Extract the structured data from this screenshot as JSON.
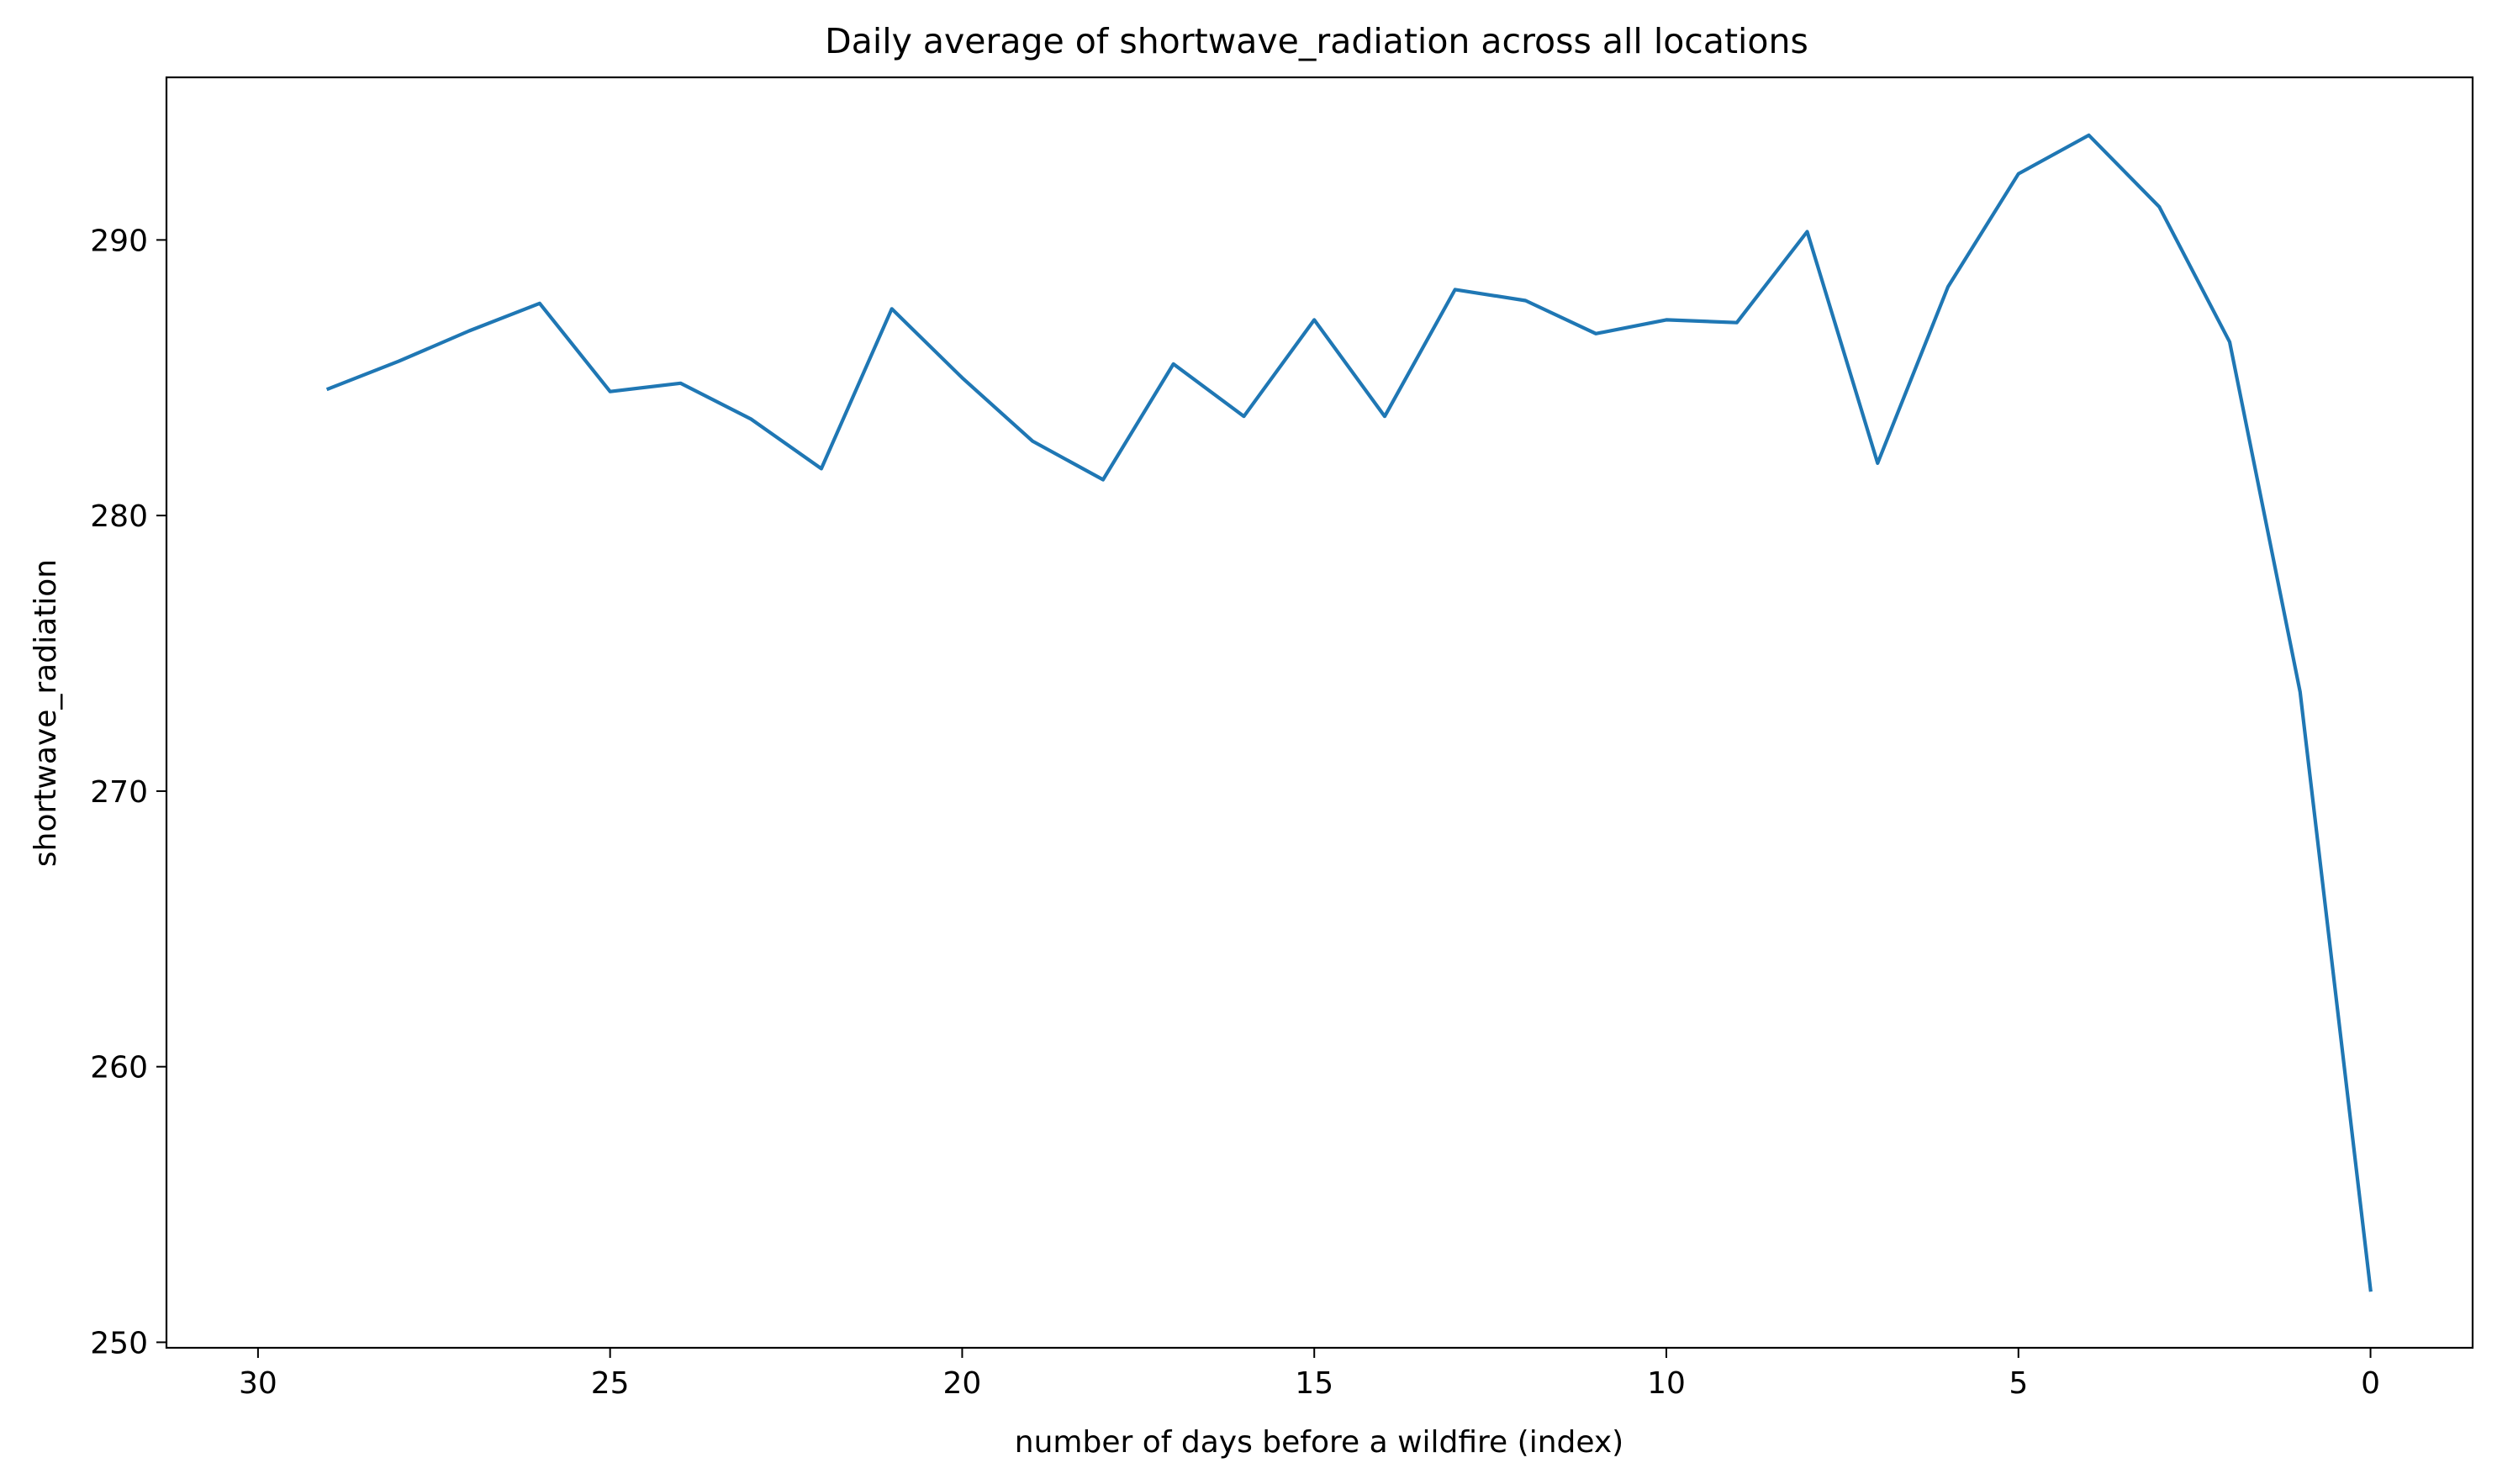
{
  "chart_data": {
    "type": "line",
    "title": "Daily average of shortwave_radiation across all locations",
    "xlabel": "number of days before a wildfire (index)",
    "ylabel": "shortwave_radiation",
    "x_inverted": true,
    "xlim": [
      31.3,
      -1.45
    ],
    "ylim": [
      249.8,
      295.9
    ],
    "xticks": [
      30,
      25,
      20,
      15,
      10,
      5,
      0
    ],
    "yticks": [
      250,
      260,
      270,
      280,
      290
    ],
    "xtick_labels": [
      "30",
      "25",
      "20",
      "15",
      "10",
      "5",
      "0"
    ],
    "ytick_labels": [
      "250",
      "260",
      "270",
      "280",
      "290"
    ],
    "grid": false,
    "series_color": "#1f77b4",
    "series": [
      {
        "x": [
          29,
          28,
          27,
          26,
          25,
          24,
          23,
          22,
          21,
          20,
          19,
          18,
          17,
          16,
          15,
          14,
          13,
          12,
          11,
          10,
          9,
          8,
          7,
          6,
          5,
          4,
          3,
          2,
          1,
          0
        ],
        "values": [
          284.6,
          285.6,
          286.7,
          287.7,
          284.5,
          284.8,
          283.5,
          281.7,
          287.5,
          285.0,
          282.7,
          281.3,
          285.5,
          283.6,
          287.1,
          283.6,
          288.2,
          287.8,
          286.6,
          287.1,
          287.0,
          290.3,
          281.9,
          288.3,
          292.4,
          293.8,
          291.2,
          286.3,
          273.6,
          251.9
        ]
      }
    ]
  }
}
